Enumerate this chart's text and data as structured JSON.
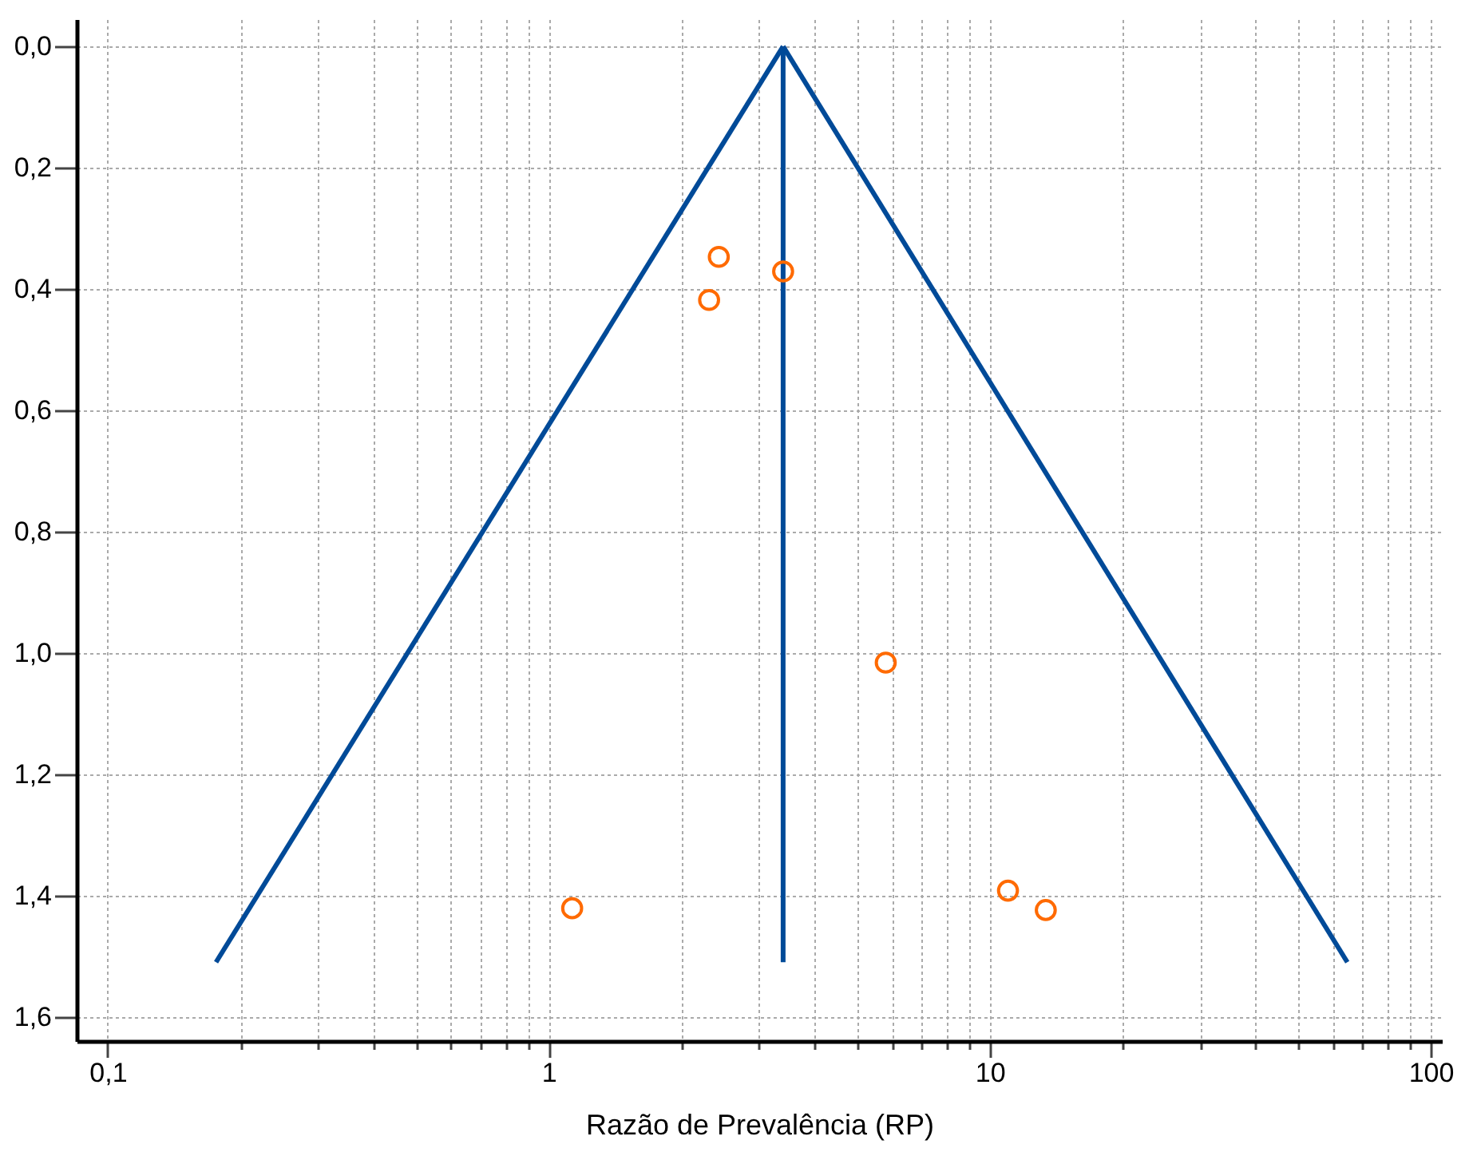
{
  "chart_data": {
    "type": "scatter",
    "xlabel": "Razão de Prevalência (RP)",
    "log": "x",
    "grid": true,
    "xlim": [
      0.085,
      106
    ],
    "ylim": [
      1.64,
      -0.045
    ],
    "xticks": [
      {
        "value": 0.1,
        "label": "0,1"
      },
      {
        "value": 0.2,
        "label": null
      },
      {
        "value": 0.3,
        "label": null
      },
      {
        "value": 0.4,
        "label": null
      },
      {
        "value": 0.5,
        "label": null
      },
      {
        "value": 0.6,
        "label": null
      },
      {
        "value": 0.7,
        "label": null
      },
      {
        "value": 0.8,
        "label": null
      },
      {
        "value": 0.9,
        "label": null
      },
      1,
      {
        "value": 2,
        "label": null
      },
      {
        "value": 3,
        "label": null
      },
      {
        "value": 4,
        "label": null
      },
      {
        "value": 5,
        "label": null
      },
      {
        "value": 6,
        "label": null
      },
      {
        "value": 7,
        "label": null
      },
      {
        "value": 8,
        "label": null
      },
      {
        "value": 9,
        "label": null
      },
      10,
      {
        "value": 20,
        "label": null
      },
      {
        "value": 30,
        "label": null
      },
      {
        "value": 40,
        "label": null
      },
      {
        "value": 50,
        "label": null
      },
      {
        "value": 60,
        "label": null
      },
      {
        "value": 70,
        "label": null
      },
      {
        "value": 80,
        "label": null
      },
      {
        "value": 90,
        "label": null
      },
      100
    ],
    "yticks": [
      {
        "value": 0,
        "label": "0,0"
      },
      {
        "value": 0.2,
        "label": "0,2"
      },
      {
        "value": 0.4,
        "label": "0,4"
      },
      {
        "value": 0.6,
        "label": "0,6"
      },
      {
        "value": 0.8,
        "label": "0,8"
      },
      {
        "value": 1,
        "label": "1,0"
      },
      {
        "value": 1.2,
        "label": "1,2"
      },
      {
        "value": 1.4,
        "label": "1,4"
      },
      {
        "value": 1.6,
        "label": "1,6"
      }
    ],
    "series": [
      {
        "type": "line",
        "color": "#004a98",
        "x": [
          0.176,
          3.4
        ],
        "values": [
          1.51,
          0
        ]
      },
      {
        "type": "line",
        "color": "#004a98",
        "x": [
          3.4,
          64.7
        ],
        "values": [
          0,
          1.51
        ]
      },
      {
        "type": "line",
        "color": "#004a98",
        "x": [
          3.4,
          3.4
        ],
        "values": [
          0,
          1.51
        ]
      },
      {
        "marker": "circle",
        "color": "#ff6a00",
        "x": [
          2.43,
          3.4,
          2.31,
          5.81,
          1.13,
          11.0,
          13.4
        ],
        "values": [
          0.347,
          0.371,
          0.418,
          1.016,
          1.421,
          1.392,
          1.424
        ]
      }
    ]
  }
}
